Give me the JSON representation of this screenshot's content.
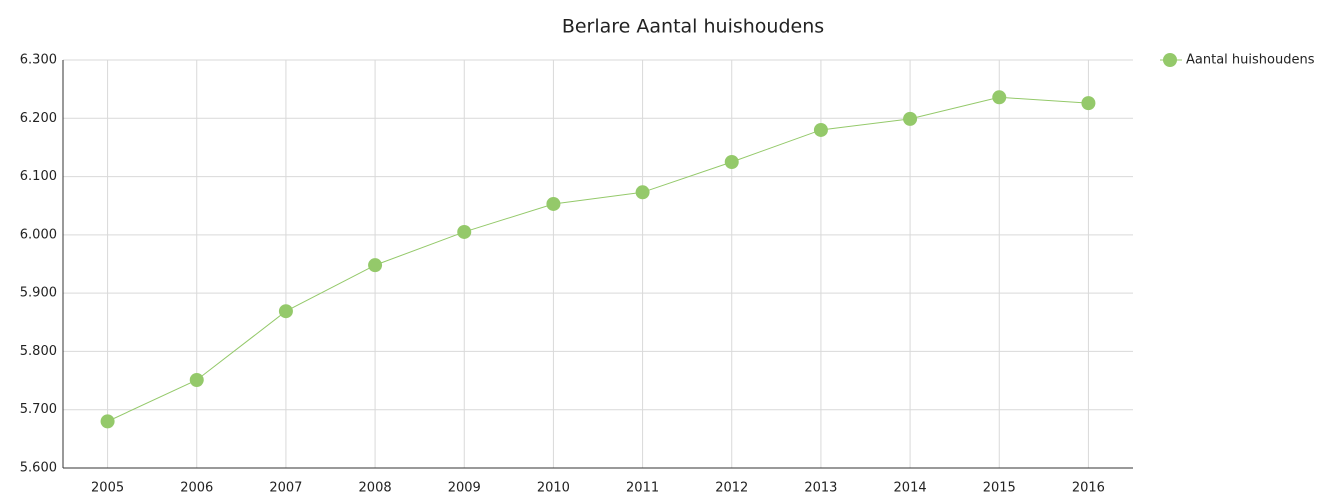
{
  "chart_data": {
    "type": "line",
    "title": "Berlare  Aantal huishoudens",
    "categories": [
      "2005",
      "2006",
      "2007",
      "2008",
      "2009",
      "2010",
      "2011",
      "2012",
      "2013",
      "2014",
      "2015",
      "2016"
    ],
    "series": [
      {
        "name": "Aantal huishoudens",
        "color": "#94c96a",
        "values": [
          5680,
          5751,
          5869,
          5948,
          6005,
          6053,
          6073,
          6125,
          6180,
          6199,
          6236,
          6226
        ]
      }
    ],
    "ylim": [
      5600,
      6300
    ],
    "yticks": [
      {
        "value": 5600,
        "label": "5.600"
      },
      {
        "value": 5700,
        "label": "5.700"
      },
      {
        "value": 5800,
        "label": "5.800"
      },
      {
        "value": 5900,
        "label": "5.900"
      },
      {
        "value": 6000,
        "label": "6.000"
      },
      {
        "value": 6100,
        "label": "6.100"
      },
      {
        "value": 6200,
        "label": "6.200"
      },
      {
        "value": 6300,
        "label": "6.300"
      }
    ],
    "grid": true,
    "legend": "top-right"
  }
}
